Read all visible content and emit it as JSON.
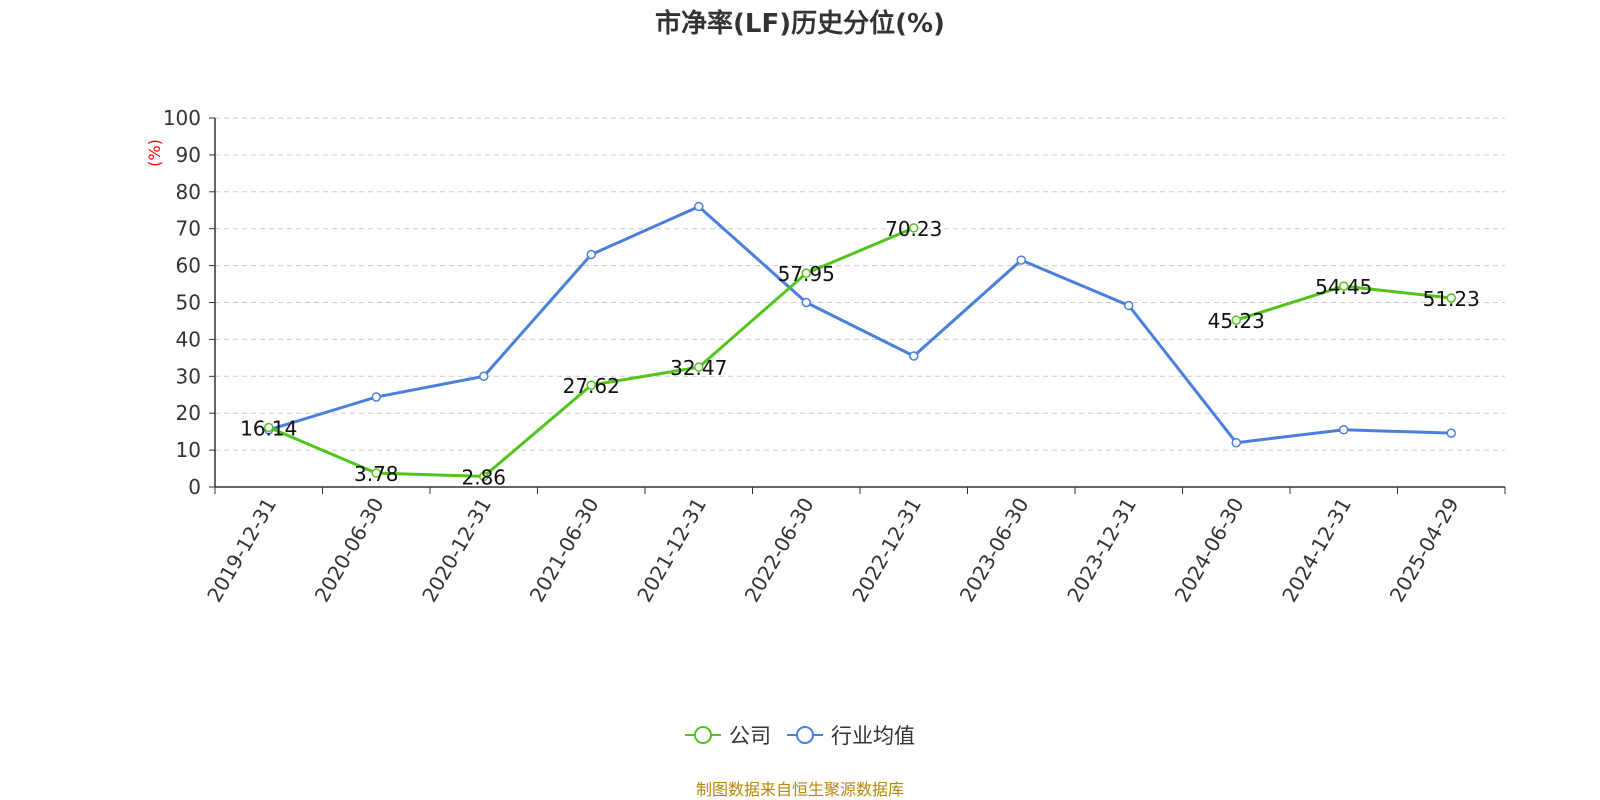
{
  "title": "市净率(LF)历史分位(%)",
  "source": "制图数据来自恒生聚源数据库",
  "colors": {
    "company": "#52c41a",
    "industry": "#4a7fdc",
    "unit_label": "#ff0000",
    "grid": "#cccccc",
    "source": "#b8860b"
  },
  "chart_data": {
    "type": "line",
    "title": "市净率(LF)历史分位(%)",
    "ylabel": "(%)",
    "ylim": [
      0,
      100
    ],
    "yticks": [
      0,
      10,
      20,
      30,
      40,
      50,
      60,
      70,
      80,
      90,
      100
    ],
    "grid": true,
    "legend_position": "bottom",
    "categories": [
      "2019-12-31",
      "2020-06-30",
      "2020-12-31",
      "2021-06-30",
      "2021-12-31",
      "2022-06-30",
      "2022-12-31",
      "2023-06-30",
      "2023-12-31",
      "2024-06-30",
      "2024-12-31",
      "2025-04-29"
    ],
    "series": [
      {
        "name": "公司",
        "color": "#52c41a",
        "values": [
          16.14,
          3.78,
          2.86,
          27.62,
          32.47,
          57.95,
          70.23,
          null,
          null,
          45.23,
          54.45,
          51.23
        ],
        "labels": [
          "16.14",
          "3.78",
          "2.86",
          "27.62",
          "32.47",
          "57.95",
          "70.23",
          null,
          null,
          "45.23",
          "54.45",
          "51.23"
        ]
      },
      {
        "name": "行业均值",
        "color": "#4a7fdc",
        "values": [
          15.5,
          24.4,
          30.0,
          63.0,
          76.0,
          50.0,
          35.5,
          61.5,
          49.2,
          12.0,
          15.5,
          14.6
        ]
      }
    ]
  }
}
